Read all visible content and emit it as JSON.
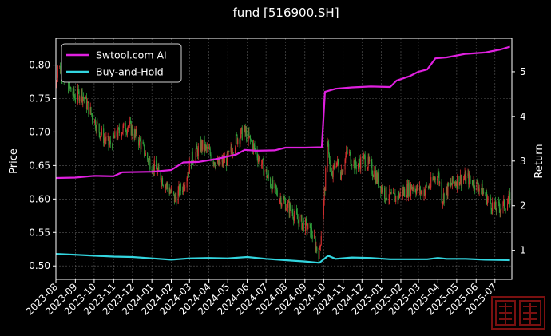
{
  "chart_data": {
    "type": "line",
    "title": "fund [516900.SH]",
    "ylabel_left": "Price",
    "ylabel_right": "Return",
    "ylim_left": [
      0.48,
      0.84
    ],
    "ylim_right": [
      0.35,
      5.75
    ],
    "yticks_left": [
      0.5,
      0.55,
      0.6,
      0.65,
      0.7,
      0.75,
      0.8
    ],
    "yticks_left_labels": [
      "0.50",
      "0.55",
      "0.60",
      "0.65",
      "0.70",
      "0.75",
      "0.80"
    ],
    "yticks_right": [
      1,
      2,
      3,
      4,
      5
    ],
    "yticks_right_labels": [
      "1",
      "2",
      "3",
      "4",
      "5"
    ],
    "xlim": [
      "2023-08-01",
      "2025-07-28"
    ],
    "x_ticks": [
      "2023-08",
      "2023-09",
      "2023-10",
      "2023-11",
      "2023-12",
      "2024-01",
      "2024-02",
      "2024-03",
      "2024-04",
      "2024-05",
      "2024-06",
      "2024-07",
      "2024-08",
      "2024-09",
      "2024-10",
      "2024-11",
      "2024-12",
      "2025-01",
      "2025-02",
      "2025-03",
      "2025-04",
      "2025-05",
      "2025-06",
      "2025-07"
    ],
    "grid": true,
    "legend_position": "top-left",
    "colors": {
      "background": "#000000",
      "up": "#d32f2f",
      "down": "#2e9e3a",
      "grid": "#5a5a5a"
    },
    "price_candles": {
      "name": "",
      "date_range": [
        "2023-08-01",
        "2025-07-25"
      ],
      "close_path": [
        {
          "x": "2023-08-01",
          "y": 0.77
        },
        {
          "x": "2023-08-04",
          "y": 0.8
        },
        {
          "x": "2023-08-10",
          "y": 0.79
        },
        {
          "x": "2023-08-20",
          "y": 0.77
        },
        {
          "x": "2023-09-01",
          "y": 0.75
        },
        {
          "x": "2023-09-10",
          "y": 0.76
        },
        {
          "x": "2023-09-25",
          "y": 0.73
        },
        {
          "x": "2023-10-10",
          "y": 0.7
        },
        {
          "x": "2023-10-25",
          "y": 0.68
        },
        {
          "x": "2023-11-10",
          "y": 0.7
        },
        {
          "x": "2023-11-25",
          "y": 0.71
        },
        {
          "x": "2023-12-10",
          "y": 0.69
        },
        {
          "x": "2023-12-25",
          "y": 0.66
        },
        {
          "x": "2024-01-10",
          "y": 0.64
        },
        {
          "x": "2024-01-25",
          "y": 0.62
        },
        {
          "x": "2024-02-06",
          "y": 0.6
        },
        {
          "x": "2024-02-20",
          "y": 0.62
        },
        {
          "x": "2024-03-05",
          "y": 0.66
        },
        {
          "x": "2024-03-20",
          "y": 0.68
        },
        {
          "x": "2024-04-01",
          "y": 0.67
        },
        {
          "x": "2024-04-15",
          "y": 0.65
        },
        {
          "x": "2024-05-01",
          "y": 0.66
        },
        {
          "x": "2024-05-15",
          "y": 0.69
        },
        {
          "x": "2024-05-28",
          "y": 0.7
        },
        {
          "x": "2024-06-10",
          "y": 0.68
        },
        {
          "x": "2024-06-25",
          "y": 0.65
        },
        {
          "x": "2024-07-10",
          "y": 0.62
        },
        {
          "x": "2024-07-25",
          "y": 0.6
        },
        {
          "x": "2024-08-05",
          "y": 0.59
        },
        {
          "x": "2024-08-20",
          "y": 0.57
        },
        {
          "x": "2024-09-01",
          "y": 0.56
        },
        {
          "x": "2024-09-12",
          "y": 0.55
        },
        {
          "x": "2024-09-20",
          "y": 0.525
        },
        {
          "x": "2024-09-24",
          "y": 0.52
        },
        {
          "x": "2024-09-30",
          "y": 0.58
        },
        {
          "x": "2024-10-08",
          "y": 0.69
        },
        {
          "x": "2024-10-12",
          "y": 0.62
        },
        {
          "x": "2024-10-20",
          "y": 0.66
        },
        {
          "x": "2024-10-28",
          "y": 0.64
        },
        {
          "x": "2024-11-08",
          "y": 0.67
        },
        {
          "x": "2024-11-20",
          "y": 0.65
        },
        {
          "x": "2024-12-05",
          "y": 0.66
        },
        {
          "x": "2024-12-20",
          "y": 0.64
        },
        {
          "x": "2025-01-05",
          "y": 0.61
        },
        {
          "x": "2025-01-20",
          "y": 0.6
        },
        {
          "x": "2025-02-05",
          "y": 0.61
        },
        {
          "x": "2025-02-20",
          "y": 0.62
        },
        {
          "x": "2025-03-05",
          "y": 0.61
        },
        {
          "x": "2025-03-20",
          "y": 0.62
        },
        {
          "x": "2025-04-01",
          "y": 0.64
        },
        {
          "x": "2025-04-08",
          "y": 0.6
        },
        {
          "x": "2025-04-20",
          "y": 0.62
        },
        {
          "x": "2025-05-05",
          "y": 0.63
        },
        {
          "x": "2025-05-20",
          "y": 0.63
        },
        {
          "x": "2025-06-05",
          "y": 0.62
        },
        {
          "x": "2025-06-20",
          "y": 0.6
        },
        {
          "x": "2025-07-01",
          "y": 0.585
        },
        {
          "x": "2025-07-15",
          "y": 0.59
        },
        {
          "x": "2025-07-25",
          "y": 0.6
        }
      ]
    },
    "series": [
      {
        "name": "Swtool.com AI",
        "axis": "right",
        "color": "#e020e0",
        "values": [
          {
            "x": "2023-08-01",
            "y": 2.62
          },
          {
            "x": "2023-09-01",
            "y": 2.63
          },
          {
            "x": "2023-10-01",
            "y": 2.67
          },
          {
            "x": "2023-11-01",
            "y": 2.66
          },
          {
            "x": "2023-11-15",
            "y": 2.75
          },
          {
            "x": "2024-01-01",
            "y": 2.76
          },
          {
            "x": "2024-02-01",
            "y": 2.8
          },
          {
            "x": "2024-02-20",
            "y": 2.97
          },
          {
            "x": "2024-03-15",
            "y": 2.98
          },
          {
            "x": "2024-04-15",
            "y": 3.05
          },
          {
            "x": "2024-05-15",
            "y": 3.15
          },
          {
            "x": "2024-05-28",
            "y": 3.25
          },
          {
            "x": "2024-06-15",
            "y": 3.23
          },
          {
            "x": "2024-07-15",
            "y": 3.24
          },
          {
            "x": "2024-08-01",
            "y": 3.3
          },
          {
            "x": "2024-09-01",
            "y": 3.3
          },
          {
            "x": "2024-09-28",
            "y": 3.31
          },
          {
            "x": "2024-10-03",
            "y": 4.55
          },
          {
            "x": "2024-10-20",
            "y": 4.62
          },
          {
            "x": "2024-11-15",
            "y": 4.65
          },
          {
            "x": "2024-12-15",
            "y": 4.67
          },
          {
            "x": "2025-01-15",
            "y": 4.66
          },
          {
            "x": "2025-01-25",
            "y": 4.8
          },
          {
            "x": "2025-02-15",
            "y": 4.9
          },
          {
            "x": "2025-03-01",
            "y": 5.0
          },
          {
            "x": "2025-03-15",
            "y": 5.05
          },
          {
            "x": "2025-03-28",
            "y": 5.3
          },
          {
            "x": "2025-04-15",
            "y": 5.32
          },
          {
            "x": "2025-05-15",
            "y": 5.4
          },
          {
            "x": "2025-06-15",
            "y": 5.43
          },
          {
            "x": "2025-07-10",
            "y": 5.5
          },
          {
            "x": "2025-07-25",
            "y": 5.56
          }
        ]
      },
      {
        "name": "Buy-and-Hold",
        "axis": "right",
        "color": "#33d6e0",
        "values": [
          {
            "x": "2023-08-01",
            "y": 0.92
          },
          {
            "x": "2023-09-01",
            "y": 0.9
          },
          {
            "x": "2023-10-01",
            "y": 0.88
          },
          {
            "x": "2023-11-01",
            "y": 0.86
          },
          {
            "x": "2023-12-01",
            "y": 0.85
          },
          {
            "x": "2024-01-01",
            "y": 0.82
          },
          {
            "x": "2024-02-01",
            "y": 0.79
          },
          {
            "x": "2024-03-01",
            "y": 0.82
          },
          {
            "x": "2024-04-01",
            "y": 0.83
          },
          {
            "x": "2024-05-01",
            "y": 0.82
          },
          {
            "x": "2024-06-01",
            "y": 0.85
          },
          {
            "x": "2024-07-01",
            "y": 0.81
          },
          {
            "x": "2024-08-01",
            "y": 0.78
          },
          {
            "x": "2024-09-01",
            "y": 0.75
          },
          {
            "x": "2024-09-24",
            "y": 0.72
          },
          {
            "x": "2024-10-08",
            "y": 0.88
          },
          {
            "x": "2024-10-20",
            "y": 0.81
          },
          {
            "x": "2024-11-15",
            "y": 0.84
          },
          {
            "x": "2024-12-15",
            "y": 0.83
          },
          {
            "x": "2025-01-15",
            "y": 0.8
          },
          {
            "x": "2025-02-15",
            "y": 0.8
          },
          {
            "x": "2025-03-15",
            "y": 0.8
          },
          {
            "x": "2025-04-01",
            "y": 0.83
          },
          {
            "x": "2025-04-15",
            "y": 0.81
          },
          {
            "x": "2025-05-15",
            "y": 0.81
          },
          {
            "x": "2025-06-15",
            "y": 0.79
          },
          {
            "x": "2025-07-25",
            "y": 0.78
          }
        ]
      }
    ],
    "legend": [
      "Swtool.com AI",
      "Buy-and-Hold"
    ]
  }
}
